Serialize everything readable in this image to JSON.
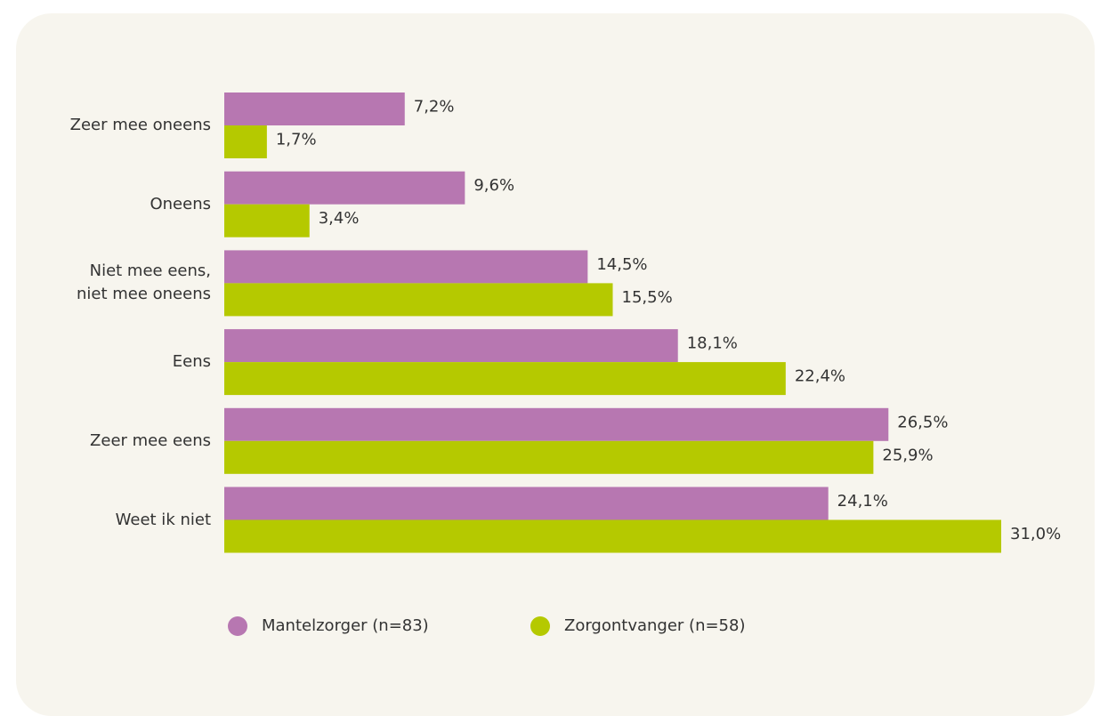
{
  "chart_data": {
    "type": "bar",
    "orientation": "horizontal",
    "categories": [
      "Zeer mee oneens",
      "Oneens",
      "Niet mee eens,\nniet mee oneens",
      "Eens",
      "Zeer mee eens",
      "Weet ik niet"
    ],
    "series": [
      {
        "name": "Mantelzorger (n=83)",
        "color": "#b777b1",
        "values": [
          7.2,
          9.6,
          14.5,
          18.1,
          26.5,
          24.1
        ],
        "value_labels": [
          "7,2%",
          "9,6%",
          "14,5%",
          "18,1%",
          "26,5%",
          "24,1%"
        ]
      },
      {
        "name": "Zorgontvanger (n=58)",
        "color": "#b5c900",
        "values": [
          1.7,
          3.4,
          15.5,
          22.4,
          25.9,
          31.0
        ],
        "value_labels": [
          "1,7%",
          "3,4%",
          "15,5%",
          "22,4%",
          "25,9%",
          "31,0%"
        ]
      }
    ],
    "legend": "bottom"
  }
}
